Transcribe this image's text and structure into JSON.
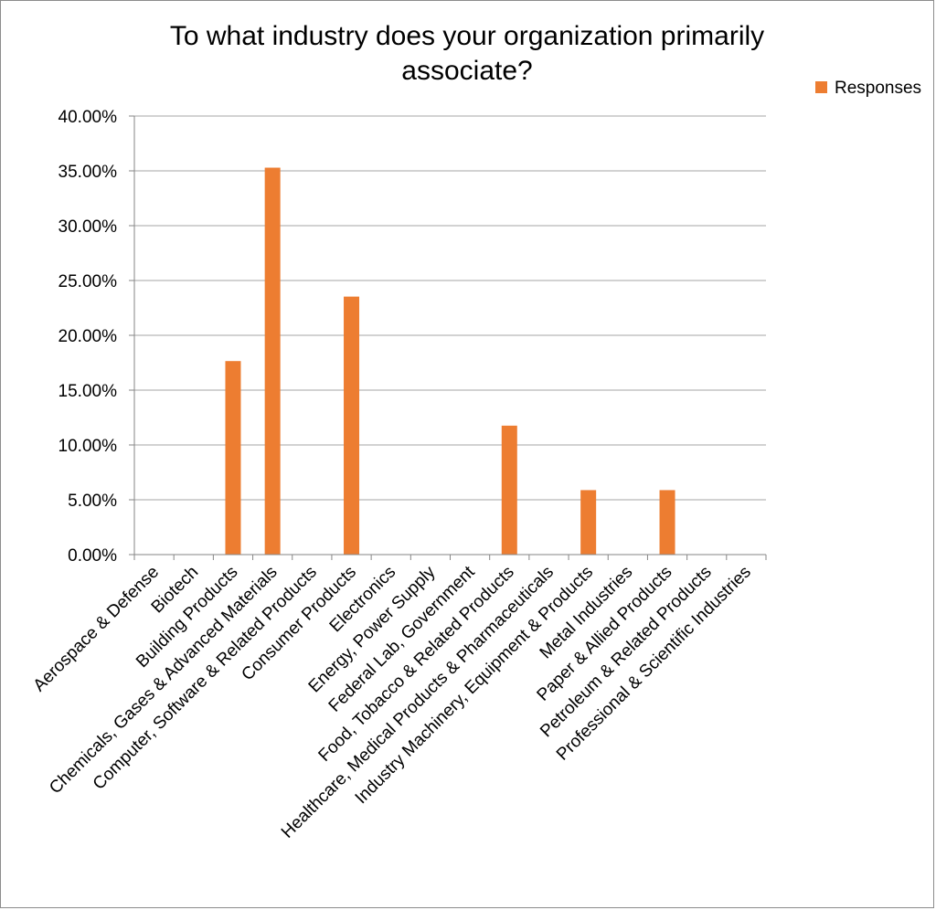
{
  "colors": {
    "bar": "#ED7D31",
    "grid": "#A6A6A6",
    "axis": "#868686",
    "text": "#000000",
    "frame": "#8C8C8C"
  },
  "chart_data": {
    "type": "bar",
    "title_lines": [
      "To what industry does your organization primarily",
      "associate?"
    ],
    "xlabel": "",
    "ylabel": "",
    "ylim": [
      0,
      40
    ],
    "y_ticks": [
      "0.00%",
      "5.00%",
      "10.00%",
      "15.00%",
      "20.00%",
      "25.00%",
      "30.00%",
      "35.00%",
      "40.00%"
    ],
    "grid": true,
    "legend_position": "top-right",
    "categories": [
      "Aerospace & Defense",
      "Biotech",
      "Building Products",
      "Chemicals, Gases & Advanced Materials",
      "Computer, Software & Related Products",
      "Consumer Products",
      "Electronics",
      "Energy, Power Supply",
      "Federal Lab, Government",
      "Food, Tobacco & Related Products",
      "Healthcare, Medical Products & Pharmaceuticals",
      "Industry Machinery, Equipment & Products",
      "Metal Industries",
      "Paper & Allied Products",
      "Petroleum & Related Products",
      "Professional & Scientific Industries"
    ],
    "series": [
      {
        "name": "Responses",
        "values": [
          0,
          0,
          17.65,
          35.29,
          0,
          23.53,
          0,
          0,
          0,
          11.76,
          0,
          5.88,
          0,
          5.88,
          0,
          0
        ]
      }
    ]
  }
}
